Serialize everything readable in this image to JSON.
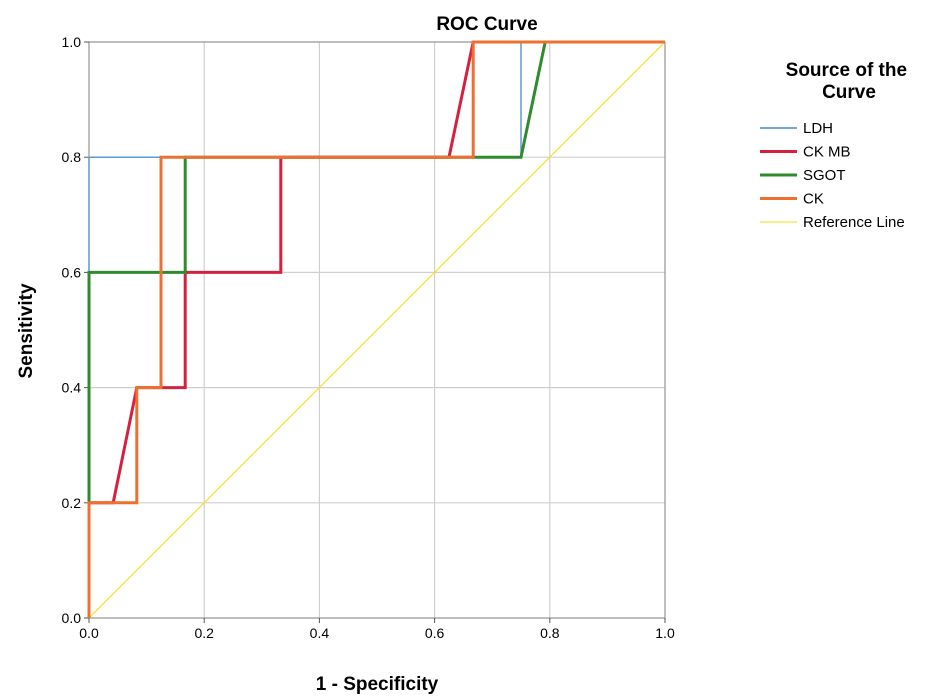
{
  "chart_data": {
    "type": "line",
    "title": "ROC Curve",
    "xlabel": "1 - Specificity",
    "ylabel": "Sensitivity",
    "xlim": [
      0,
      1
    ],
    "ylim": [
      0,
      1
    ],
    "grid": true,
    "x_ticks": [
      "0.0",
      "0.2",
      "0.4",
      "0.6",
      "0.8",
      "1.0"
    ],
    "y_ticks": [
      "0.0",
      "0.2",
      "0.4",
      "0.6",
      "0.8",
      "1.0"
    ],
    "legend_title": "Source of the Curve",
    "legend_position": "right",
    "series": [
      {
        "name": "LDH",
        "color": "#5b9bd5",
        "x": [
          0,
          0,
          0.125,
          0.125,
          0.667,
          0.75,
          0.75,
          1.0
        ],
        "y": [
          0,
          0.8,
          0.8,
          0.8,
          0.8,
          0.8,
          1.0,
          1.0
        ]
      },
      {
        "name": "CK MB",
        "color": "#d62040",
        "x": [
          0,
          0,
          0.042,
          0.083,
          0.167,
          0.167,
          0.333,
          0.333,
          0.625,
          0.667,
          1.0
        ],
        "y": [
          0,
          0.2,
          0.2,
          0.4,
          0.4,
          0.6,
          0.6,
          0.8,
          0.8,
          1.0,
          1.0
        ]
      },
      {
        "name": "SGOT",
        "color": "#2e8b2e",
        "x": [
          0,
          0,
          0.167,
          0.167,
          0.75,
          0.792,
          1.0
        ],
        "y": [
          0,
          0.6,
          0.6,
          0.8,
          0.8,
          1.0,
          1.0
        ]
      },
      {
        "name": "CK",
        "color": "#ed7031",
        "x": [
          0,
          0,
          0.083,
          0.083,
          0.125,
          0.125,
          0.667,
          0.667,
          1.0
        ],
        "y": [
          0,
          0.2,
          0.2,
          0.4,
          0.4,
          0.8,
          0.8,
          1.0,
          1.0
        ]
      },
      {
        "name": "Reference Line",
        "color": "#f2e33a",
        "x": [
          0,
          1
        ],
        "y": [
          0,
          1
        ]
      }
    ]
  }
}
